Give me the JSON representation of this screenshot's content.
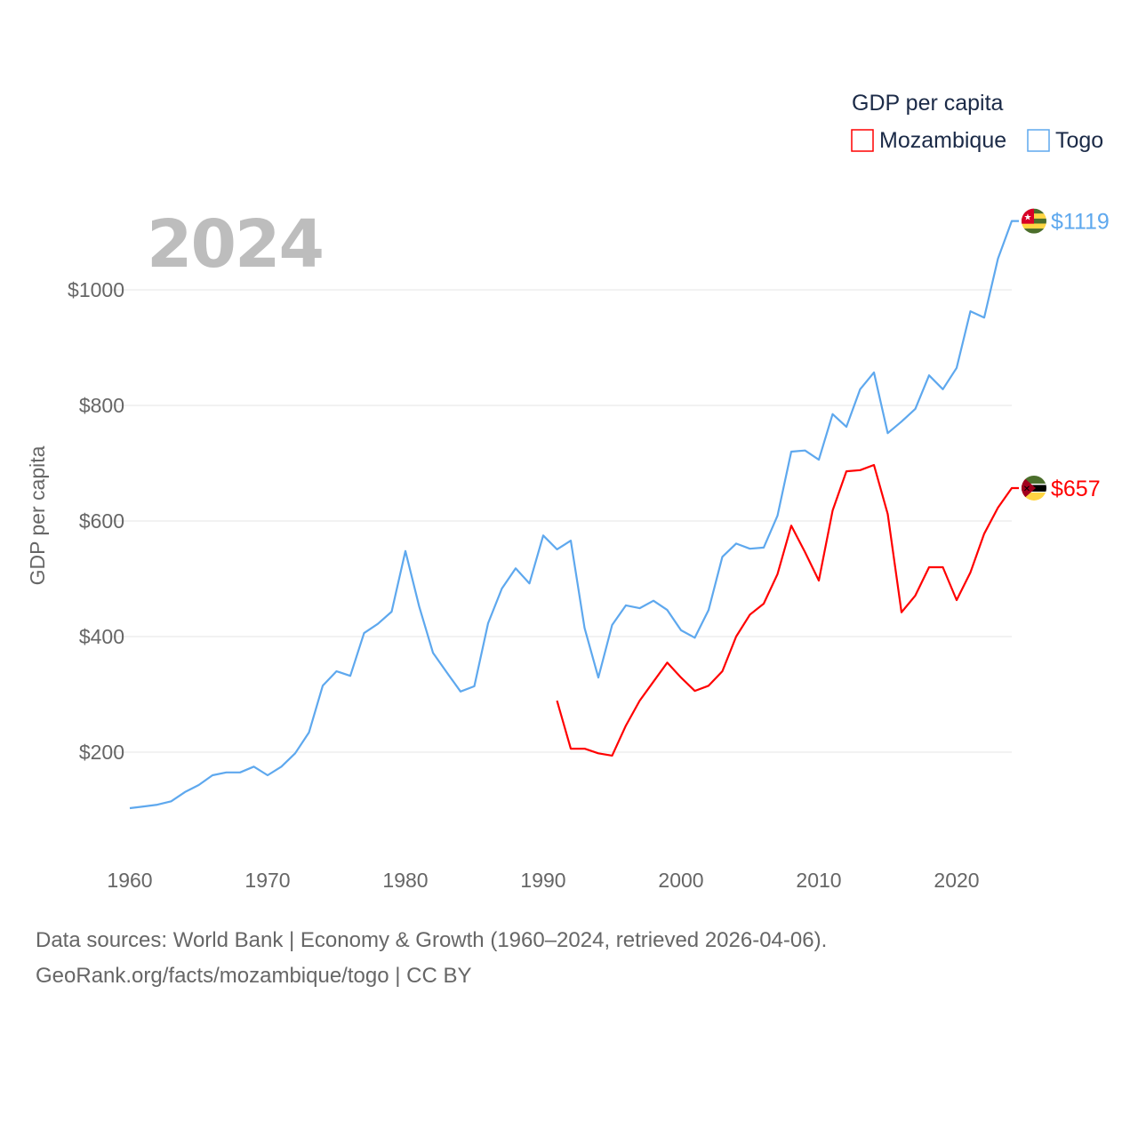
{
  "chart_data": {
    "type": "line",
    "title": "GDP per capita",
    "year_label": "2024",
    "ylabel": "GDP per capita",
    "xlabel": "",
    "xlim": [
      1960,
      2024
    ],
    "ylim": [
      0,
      1150
    ],
    "x_ticks": [
      1960,
      1970,
      1980,
      1990,
      2000,
      2010,
      2020
    ],
    "x_tick_labels": [
      "1960",
      "1970",
      "1980",
      "1990",
      "2000",
      "2010",
      "2020"
    ],
    "y_ticks": [
      200,
      400,
      600,
      800,
      1000
    ],
    "y_tick_labels": [
      "$200",
      "$400",
      "$600",
      "$800",
      "$1000"
    ],
    "grid": true,
    "legend": {
      "title": "GDP per capita",
      "placement": "top-right"
    },
    "series": [
      {
        "name": "Mozambique",
        "color": "#ff0000",
        "end_label": "$657",
        "flag": "mozambique-flag",
        "x": [
          1991,
          1992,
          1993,
          1994,
          1995,
          1996,
          1997,
          1998,
          1999,
          2000,
          2001,
          2002,
          2003,
          2004,
          2005,
          2006,
          2007,
          2008,
          2009,
          2010,
          2011,
          2012,
          2013,
          2014,
          2015,
          2016,
          2017,
          2018,
          2019,
          2020,
          2021,
          2022,
          2023,
          2024
        ],
        "values": [
          289,
          206,
          206,
          198,
          194,
          246,
          289,
          322,
          355,
          329,
          306,
          315,
          340,
          400,
          438,
          457,
          508,
          592,
          546,
          497,
          618,
          686,
          688,
          697,
          612,
          442,
          471,
          520,
          520,
          463,
          511,
          578,
          623,
          657
        ]
      },
      {
        "name": "Togo",
        "color": "#5ea8ee",
        "end_label": "$1119",
        "flag": "togo-flag",
        "x": [
          1960,
          1961,
          1962,
          1963,
          1964,
          1965,
          1966,
          1967,
          1968,
          1969,
          1970,
          1971,
          1972,
          1973,
          1974,
          1975,
          1976,
          1977,
          1978,
          1979,
          1980,
          1981,
          1982,
          1983,
          1984,
          1985,
          1986,
          1987,
          1988,
          1989,
          1990,
          1991,
          1992,
          1993,
          1994,
          1995,
          1996,
          1997,
          1998,
          1999,
          2000,
          2001,
          2002,
          2003,
          2004,
          2005,
          2006,
          2007,
          2008,
          2009,
          2010,
          2011,
          2012,
          2013,
          2014,
          2015,
          2016,
          2017,
          2018,
          2019,
          2020,
          2021,
          2022,
          2023,
          2024
        ],
        "values": [
          103,
          106,
          109,
          115,
          131,
          143,
          160,
          165,
          165,
          175,
          160,
          175,
          198,
          234,
          315,
          340,
          332,
          406,
          422,
          443,
          548,
          452,
          372,
          338,
          305,
          314,
          423,
          483,
          518,
          492,
          575,
          551,
          566,
          415,
          329,
          420,
          454,
          449,
          462,
          446,
          411,
          398,
          446,
          538,
          561,
          552,
          554,
          609,
          720,
          722,
          706,
          785,
          763,
          828,
          857,
          752,
          772,
          794,
          852,
          828,
          865,
          963,
          952,
          1054,
          1119
        ]
      }
    ]
  },
  "footer": {
    "line1": "Data sources: World Bank | Economy & Growth (1960–2024, retrieved 2026-04-06).",
    "line2": "GeoRank.org/facts/mozambique/togo | CC BY"
  }
}
